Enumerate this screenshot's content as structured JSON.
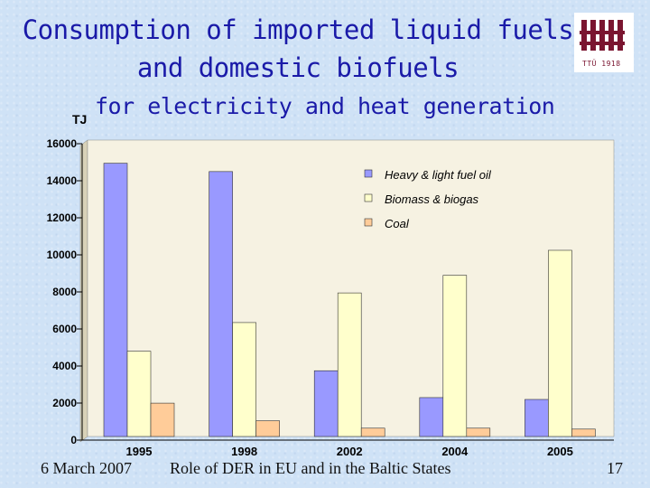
{
  "slide": {
    "title_line1": "Consumption of imported liquid fuels",
    "title_line2": "and domestic biofuels",
    "subtitle": "for electricity and heat generation",
    "logo_text": "TTÜ 1918",
    "footer_date": "6 March 2007",
    "footer_title": "Role of DER in EU and in the Baltic States",
    "page_number": "17"
  },
  "colors": {
    "title": "#1a1aa8",
    "plot_background": "#f6f2e2",
    "heavy_fuel_oil": "#9999ff",
    "biomass": "#ffffcc",
    "coal": "#ffcc99"
  },
  "chart_data": {
    "type": "bar",
    "title": "",
    "ylabel": "TJ",
    "xlabel": "",
    "ylim": [
      0,
      16000
    ],
    "yticks": [
      "0",
      "2000",
      "4000",
      "6000",
      "8000",
      "10000",
      "12000",
      "14000",
      "16000"
    ],
    "categories": [
      "1995",
      "1998",
      "2002",
      "2004",
      "2005"
    ],
    "grid": false,
    "legend_position": "top-right",
    "series": [
      {
        "name": "Heavy & light fuel oil",
        "color": "#9999ff",
        "values": [
          14750,
          14300,
          3550,
          2100,
          2000
        ]
      },
      {
        "name": "Biomass & biogas",
        "color": "#ffffcc",
        "values": [
          4600,
          6150,
          7750,
          8700,
          10050
        ]
      },
      {
        "name": "Coal",
        "color": "#ffcc99",
        "values": [
          1800,
          850,
          450,
          450,
          400
        ]
      }
    ]
  }
}
